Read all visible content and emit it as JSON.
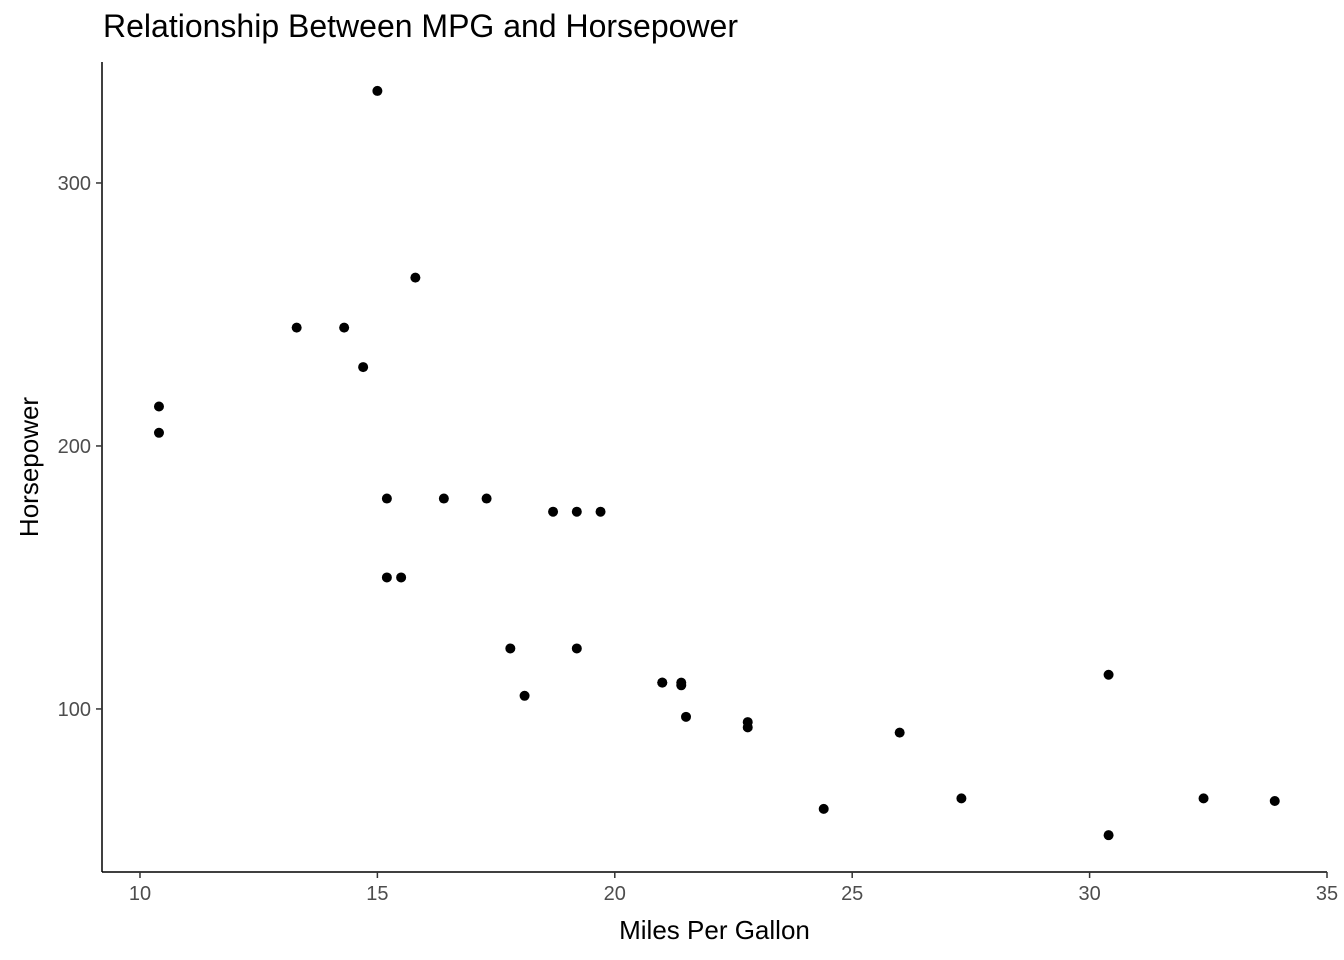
{
  "chart_data": {
    "type": "scatter",
    "title": "Relationship Between MPG and Horsepower",
    "xlabel": "Miles Per Gallon",
    "ylabel": "Horsepower",
    "xlim": [
      9.2,
      35
    ],
    "ylim": [
      38,
      346
    ],
    "xticks": [
      10,
      15,
      20,
      25,
      30,
      35
    ],
    "yticks": [
      100,
      200,
      300
    ],
    "grid": false,
    "legend": "none",
    "point_color": "#000000",
    "points": [
      {
        "x": 21.0,
        "y": 110
      },
      {
        "x": 21.0,
        "y": 110
      },
      {
        "x": 22.8,
        "y": 93
      },
      {
        "x": 21.4,
        "y": 110
      },
      {
        "x": 18.7,
        "y": 175
      },
      {
        "x": 18.1,
        "y": 105
      },
      {
        "x": 14.3,
        "y": 245
      },
      {
        "x": 24.4,
        "y": 62
      },
      {
        "x": 22.8,
        "y": 95
      },
      {
        "x": 19.2,
        "y": 123
      },
      {
        "x": 17.8,
        "y": 123
      },
      {
        "x": 16.4,
        "y": 180
      },
      {
        "x": 17.3,
        "y": 180
      },
      {
        "x": 15.2,
        "y": 180
      },
      {
        "x": 10.4,
        "y": 205
      },
      {
        "x": 10.4,
        "y": 215
      },
      {
        "x": 14.7,
        "y": 230
      },
      {
        "x": 32.4,
        "y": 66
      },
      {
        "x": 30.4,
        "y": 52
      },
      {
        "x": 33.9,
        "y": 65
      },
      {
        "x": 21.5,
        "y": 97
      },
      {
        "x": 15.5,
        "y": 150
      },
      {
        "x": 15.2,
        "y": 150
      },
      {
        "x": 13.3,
        "y": 245
      },
      {
        "x": 19.2,
        "y": 175
      },
      {
        "x": 27.3,
        "y": 66
      },
      {
        "x": 26.0,
        "y": 91
      },
      {
        "x": 30.4,
        "y": 113
      },
      {
        "x": 15.8,
        "y": 264
      },
      {
        "x": 19.7,
        "y": 175
      },
      {
        "x": 15.0,
        "y": 335
      },
      {
        "x": 21.4,
        "y": 109
      }
    ]
  }
}
